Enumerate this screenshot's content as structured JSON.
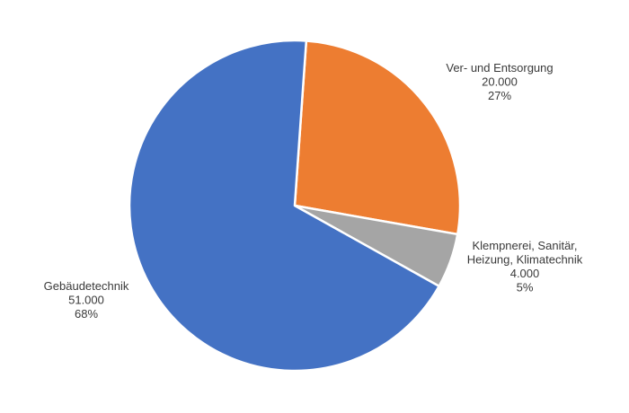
{
  "chart_data": {
    "type": "pie",
    "title": "",
    "slices": [
      {
        "label_lines": [
          "Ver- und Entsorgung"
        ],
        "value_label": "20.000",
        "percent_label": "27%",
        "value": 20000,
        "percent": 27,
        "color": "#ED7D31"
      },
      {
        "label_lines": [
          "Klempnerei, Sanitär,",
          "Heizung, Klimatechnik"
        ],
        "value_label": "4.000",
        "percent_label": "5%",
        "value": 4000,
        "percent": 5,
        "color": "#A5A5A5"
      },
      {
        "label_lines": [
          "Gebäudetechnik"
        ],
        "value_label": "51.000",
        "percent_label": "68%",
        "value": 51000,
        "percent": 68,
        "color": "#4472C4"
      }
    ],
    "start_angle_deg": 4,
    "direction": "clockwise",
    "legend": "none",
    "labels": "outside"
  }
}
